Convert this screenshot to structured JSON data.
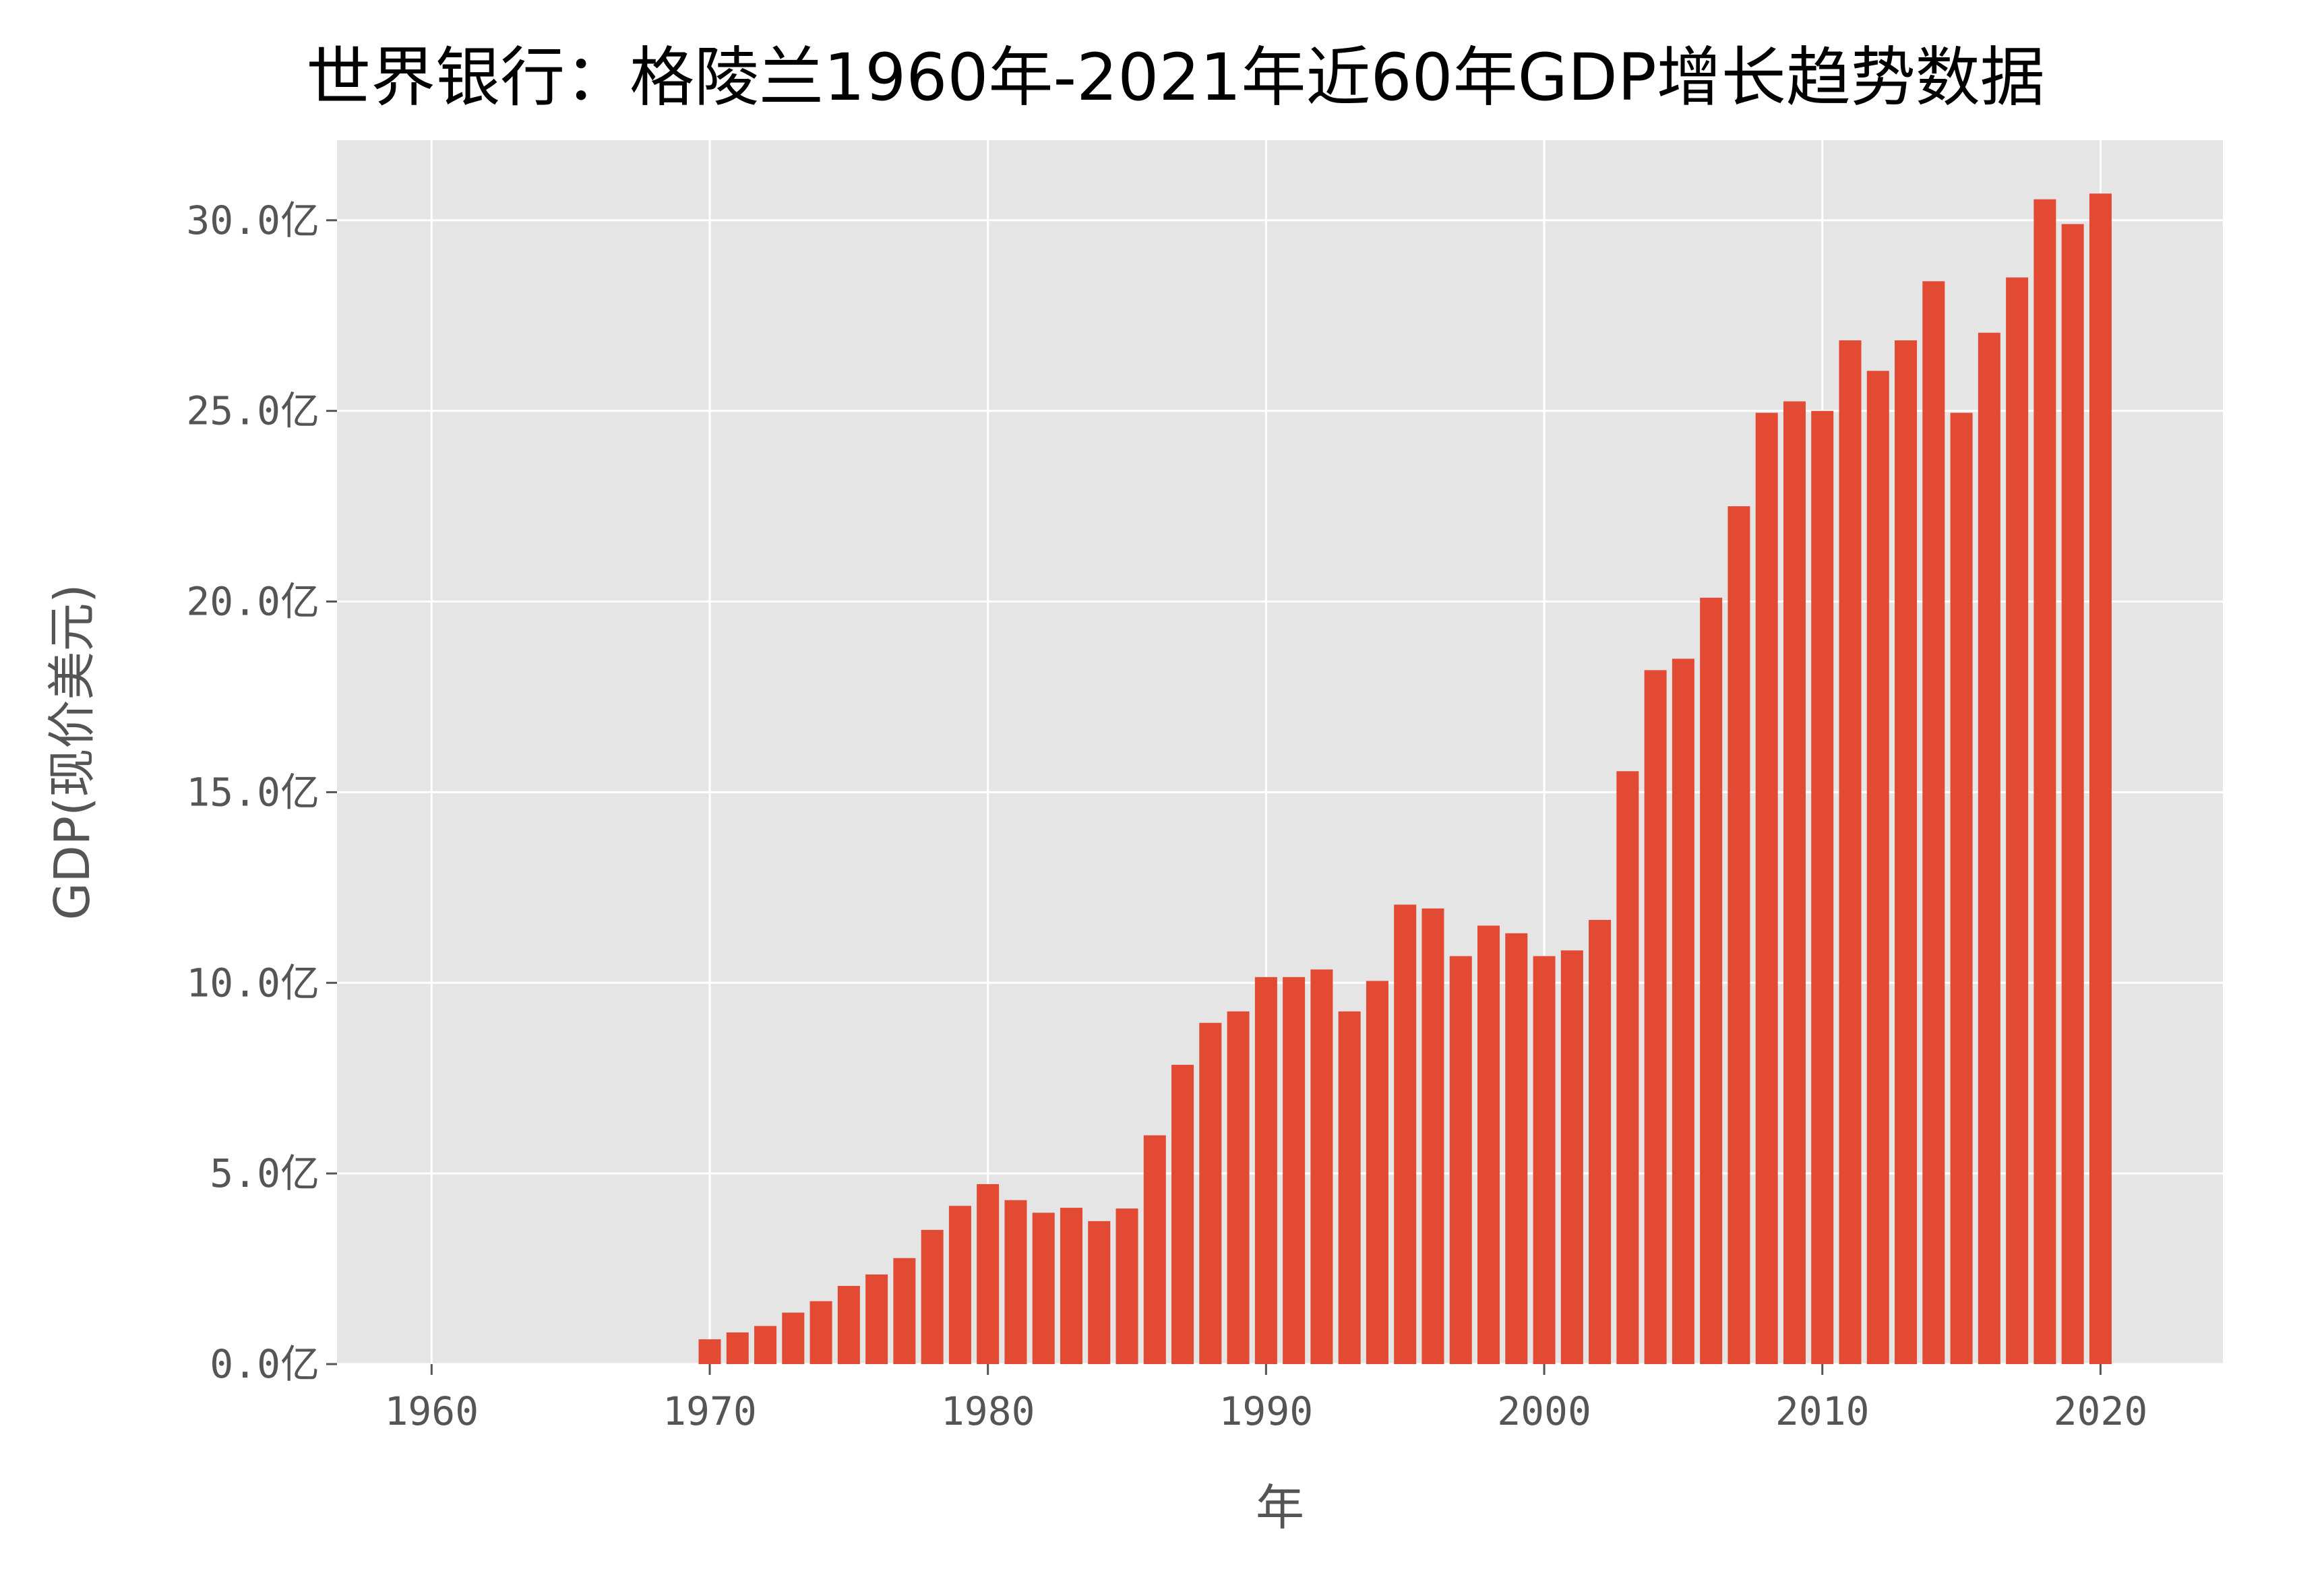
{
  "chart_data": {
    "type": "bar",
    "title": "世界银行：格陵兰1960年-2021年近60年GDP增长趋势数据",
    "xlabel": "年",
    "ylabel": "GDP(现价美元)",
    "x": [
      1970,
      1971,
      1972,
      1973,
      1974,
      1975,
      1976,
      1977,
      1978,
      1979,
      1980,
      1981,
      1982,
      1983,
      1984,
      1985,
      1986,
      1987,
      1988,
      1989,
      1990,
      1991,
      1992,
      1993,
      1994,
      1995,
      1996,
      1997,
      1998,
      1999,
      2000,
      2001,
      2002,
      2003,
      2004,
      2005,
      2006,
      2007,
      2008,
      2009,
      2010,
      2011,
      2012,
      2013,
      2014,
      2015,
      2016,
      2017,
      2018,
      2019,
      2020
    ],
    "values": [
      0.65,
      0.83,
      1.0,
      1.35,
      1.65,
      2.05,
      2.35,
      2.78,
      3.52,
      4.15,
      4.72,
      4.3,
      3.97,
      4.1,
      3.75,
      4.08,
      6.0,
      7.85,
      8.95,
      9.25,
      10.15,
      10.15,
      10.35,
      9.25,
      10.05,
      12.05,
      11.95,
      10.7,
      11.5,
      11.3,
      10.7,
      10.85,
      11.65,
      15.55,
      18.2,
      18.5,
      20.1,
      22.5,
      24.95,
      25.25,
      25.0,
      26.85,
      26.05,
      26.85,
      28.4,
      24.95,
      27.05,
      28.5,
      30.55,
      29.9,
      30.7
    ],
    "xticks": [
      "1960",
      "1970",
      "1980",
      "1990",
      "2000",
      "2010",
      "2020"
    ],
    "yticks": [
      "0.0亿",
      "5.0亿",
      "10.0亿",
      "15.0亿",
      "20.0亿",
      "25.0亿",
      "30.0亿"
    ],
    "xlim": [
      1956.6,
      2024.4
    ],
    "ylim": [
      0,
      32.1
    ],
    "grid": true,
    "bar_color": "#E24A33",
    "plot_background": "#E5E5E5",
    "grid_color": "#FFFFFF"
  }
}
